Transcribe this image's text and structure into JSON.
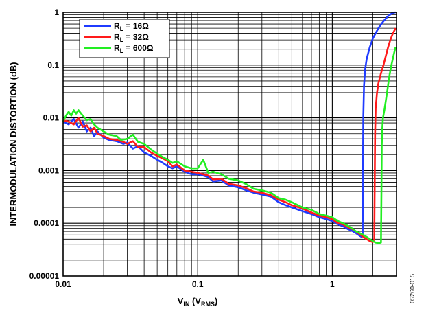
{
  "chart_data": {
    "type": "line",
    "xlabel": {
      "main": "V",
      "sub": "IN",
      "paren_open": " (V",
      "paren_sub": "RMS",
      "paren_close": ")"
    },
    "ylabel": "INTERMODULATION DISTORTION (dB)",
    "x_scale": "log",
    "y_scale": "log",
    "xlim": [
      0.01,
      3
    ],
    "ylim": [
      1e-05,
      1
    ],
    "x_tick_labels": [
      {
        "value": 0.01,
        "label": "0.01"
      },
      {
        "value": 0.1,
        "label": "0.1"
      },
      {
        "value": 1,
        "label": "1"
      }
    ],
    "y_tick_labels": [
      {
        "value": 1,
        "label": "1"
      },
      {
        "value": 0.1,
        "label": "0.1"
      },
      {
        "value": 0.01,
        "label": "0.01"
      },
      {
        "value": 0.001,
        "label": "0.001"
      },
      {
        "value": 0.0001,
        "label": "0.0001"
      },
      {
        "value": 1e-05,
        "label": "0.00001"
      }
    ],
    "grid": true,
    "legend_position": "top-left",
    "figure_id": "05260-015",
    "series": [
      {
        "name": {
          "main": "R",
          "sub": "L",
          "rest": " = 16Ω"
        },
        "color": "#1f3bff",
        "points": [
          [
            0.01,
            0.0085
          ],
          [
            0.011,
            0.0075
          ],
          [
            0.012,
            0.0095
          ],
          [
            0.013,
            0.0065
          ],
          [
            0.014,
            0.0085
          ],
          [
            0.015,
            0.0055
          ],
          [
            0.016,
            0.0065
          ],
          [
            0.017,
            0.0045
          ],
          [
            0.018,
            0.0055
          ],
          [
            0.02,
            0.0042
          ],
          [
            0.022,
            0.0038
          ],
          [
            0.025,
            0.0036
          ],
          [
            0.028,
            0.0032
          ],
          [
            0.03,
            0.0034
          ],
          [
            0.033,
            0.0026
          ],
          [
            0.036,
            0.0029
          ],
          [
            0.04,
            0.0022
          ],
          [
            0.045,
            0.0019
          ],
          [
            0.05,
            0.0016
          ],
          [
            0.055,
            0.0014
          ],
          [
            0.06,
            0.0012
          ],
          [
            0.065,
            0.0011
          ],
          [
            0.07,
            0.0012
          ],
          [
            0.08,
            0.00095
          ],
          [
            0.09,
            0.00085
          ],
          [
            0.1,
            0.00085
          ],
          [
            0.11,
            0.0008
          ],
          [
            0.12,
            0.00075
          ],
          [
            0.13,
            0.00062
          ],
          [
            0.15,
            0.00065
          ],
          [
            0.17,
            0.00052
          ],
          [
            0.2,
            0.00048
          ],
          [
            0.23,
            0.00042
          ],
          [
            0.26,
            0.00038
          ],
          [
            0.3,
            0.00035
          ],
          [
            0.35,
            0.00032
          ],
          [
            0.4,
            0.00025
          ],
          [
            0.45,
            0.00022
          ],
          [
            0.5,
            0.0002
          ],
          [
            0.6,
            0.00017
          ],
          [
            0.7,
            0.00015
          ],
          [
            0.8,
            0.00013
          ],
          [
            0.9,
            0.00012
          ],
          [
            1.0,
            0.00011
          ],
          [
            1.1,
            9.5e-05
          ],
          [
            1.2,
            8.8e-05
          ],
          [
            1.3,
            7.8e-05
          ],
          [
            1.4,
            7.2e-05
          ],
          [
            1.5,
            6.5e-05
          ],
          [
            1.6,
            5.8e-05
          ],
          [
            1.65,
            5.5e-05
          ],
          [
            1.68,
            6e-05
          ],
          [
            1.69,
            0.001
          ],
          [
            1.7,
            0.01
          ],
          [
            1.72,
            0.04
          ],
          [
            1.75,
            0.08
          ],
          [
            1.8,
            0.13
          ],
          [
            1.9,
            0.22
          ],
          [
            2.0,
            0.32
          ],
          [
            2.2,
            0.5
          ],
          [
            2.4,
            0.68
          ],
          [
            2.6,
            0.85
          ],
          [
            2.8,
            0.97
          ],
          [
            2.95,
            1.0
          ]
        ]
      },
      {
        "name": {
          "main": "R",
          "sub": "L",
          "rest": " = 32Ω"
        },
        "color": "#ff1a1a",
        "points": [
          [
            0.01,
            0.009
          ],
          [
            0.011,
            0.0085
          ],
          [
            0.012,
            0.0075
          ],
          [
            0.013,
            0.01
          ],
          [
            0.014,
            0.0068
          ],
          [
            0.015,
            0.0072
          ],
          [
            0.016,
            0.0055
          ],
          [
            0.017,
            0.0065
          ],
          [
            0.018,
            0.005
          ],
          [
            0.02,
            0.0045
          ],
          [
            0.022,
            0.004
          ],
          [
            0.025,
            0.0038
          ],
          [
            0.028,
            0.0035
          ],
          [
            0.03,
            0.0032
          ],
          [
            0.033,
            0.0036
          ],
          [
            0.036,
            0.0028
          ],
          [
            0.04,
            0.0028
          ],
          [
            0.045,
            0.0022
          ],
          [
            0.05,
            0.0019
          ],
          [
            0.055,
            0.0017
          ],
          [
            0.06,
            0.0015
          ],
          [
            0.065,
            0.0012
          ],
          [
            0.07,
            0.0013
          ],
          [
            0.08,
            0.001
          ],
          [
            0.09,
            0.00095
          ],
          [
            0.1,
            0.0009
          ],
          [
            0.11,
            0.00085
          ],
          [
            0.12,
            0.0008
          ],
          [
            0.13,
            0.00068
          ],
          [
            0.15,
            0.0007
          ],
          [
            0.17,
            0.00056
          ],
          [
            0.2,
            0.00052
          ],
          [
            0.23,
            0.00046
          ],
          [
            0.26,
            0.0004
          ],
          [
            0.3,
            0.00038
          ],
          [
            0.35,
            0.00034
          ],
          [
            0.4,
            0.00028
          ],
          [
            0.45,
            0.00025
          ],
          [
            0.5,
            0.00022
          ],
          [
            0.6,
            0.00019
          ],
          [
            0.7,
            0.00016
          ],
          [
            0.8,
            0.00014
          ],
          [
            0.9,
            0.00013
          ],
          [
            1.0,
            0.00012
          ],
          [
            1.1,
            0.0001
          ],
          [
            1.2,
            9.5e-05
          ],
          [
            1.3,
            8.5e-05
          ],
          [
            1.4,
            7.8e-05
          ],
          [
            1.5,
            7e-05
          ],
          [
            1.6,
            6.2e-05
          ],
          [
            1.7,
            5.5e-05
          ],
          [
            1.8,
            5e-05
          ],
          [
            1.9,
            4.6e-05
          ],
          [
            2.0,
            4.4e-05
          ],
          [
            2.05,
            5e-05
          ],
          [
            2.07,
            0.001
          ],
          [
            2.08,
            0.005
          ],
          [
            2.1,
            0.015
          ],
          [
            2.15,
            0.03
          ],
          [
            2.2,
            0.045
          ],
          [
            2.3,
            0.07
          ],
          [
            2.4,
            0.1
          ],
          [
            2.5,
            0.15
          ],
          [
            2.6,
            0.22
          ],
          [
            2.7,
            0.3
          ],
          [
            2.8,
            0.38
          ],
          [
            2.95,
            0.5
          ]
        ]
      },
      {
        "name": {
          "main": "R",
          "sub": "L",
          "rest": " = 600Ω"
        },
        "color": "#22ee22",
        "points": [
          [
            0.01,
            0.0085
          ],
          [
            0.0105,
            0.011
          ],
          [
            0.011,
            0.013
          ],
          [
            0.0115,
            0.011
          ],
          [
            0.012,
            0.014
          ],
          [
            0.0125,
            0.012
          ],
          [
            0.013,
            0.014
          ],
          [
            0.014,
            0.011
          ],
          [
            0.015,
            0.009
          ],
          [
            0.016,
            0.0095
          ],
          [
            0.017,
            0.0075
          ],
          [
            0.018,
            0.0065
          ],
          [
            0.02,
            0.0055
          ],
          [
            0.022,
            0.0048
          ],
          [
            0.025,
            0.0045
          ],
          [
            0.027,
            0.0038
          ],
          [
            0.03,
            0.004
          ],
          [
            0.033,
            0.0048
          ],
          [
            0.036,
            0.0035
          ],
          [
            0.04,
            0.0032
          ],
          [
            0.045,
            0.0025
          ],
          [
            0.05,
            0.0021
          ],
          [
            0.055,
            0.0018
          ],
          [
            0.06,
            0.0016
          ],
          [
            0.065,
            0.0014
          ],
          [
            0.07,
            0.0015
          ],
          [
            0.08,
            0.0012
          ],
          [
            0.09,
            0.0011
          ],
          [
            0.1,
            0.0011
          ],
          [
            0.11,
            0.0016
          ],
          [
            0.12,
            0.0009
          ],
          [
            0.13,
            0.00095
          ],
          [
            0.15,
            0.00085
          ],
          [
            0.17,
            0.0007
          ],
          [
            0.2,
            0.00065
          ],
          [
            0.23,
            0.00055
          ],
          [
            0.26,
            0.00045
          ],
          [
            0.3,
            0.00042
          ],
          [
            0.35,
            0.00038
          ],
          [
            0.4,
            0.0003
          ],
          [
            0.45,
            0.00028
          ],
          [
            0.5,
            0.00025
          ],
          [
            0.6,
            0.0002
          ],
          [
            0.7,
            0.00018
          ],
          [
            0.8,
            0.00015
          ],
          [
            0.9,
            0.00014
          ],
          [
            1.0,
            0.00013
          ],
          [
            1.1,
            0.00011
          ],
          [
            1.2,
            0.0001
          ],
          [
            1.3,
            9e-05
          ],
          [
            1.4,
            8e-05
          ],
          [
            1.5,
            7e-05
          ],
          [
            1.6,
            6.5e-05
          ],
          [
            1.7,
            6e-05
          ],
          [
            1.8,
            5.5e-05
          ],
          [
            1.9,
            5e-05
          ],
          [
            2.0,
            4.6e-05
          ],
          [
            2.1,
            4.3e-05
          ],
          [
            2.2,
            4.2e-05
          ],
          [
            2.3,
            4.3e-05
          ],
          [
            2.32,
            0.0005
          ],
          [
            2.33,
            0.003
          ],
          [
            2.35,
            0.006
          ],
          [
            2.38,
            0.01
          ],
          [
            2.45,
            0.015
          ],
          [
            2.55,
            0.03
          ],
          [
            2.65,
            0.06
          ],
          [
            2.75,
            0.1
          ],
          [
            2.85,
            0.15
          ],
          [
            2.95,
            0.22
          ]
        ]
      }
    ]
  }
}
